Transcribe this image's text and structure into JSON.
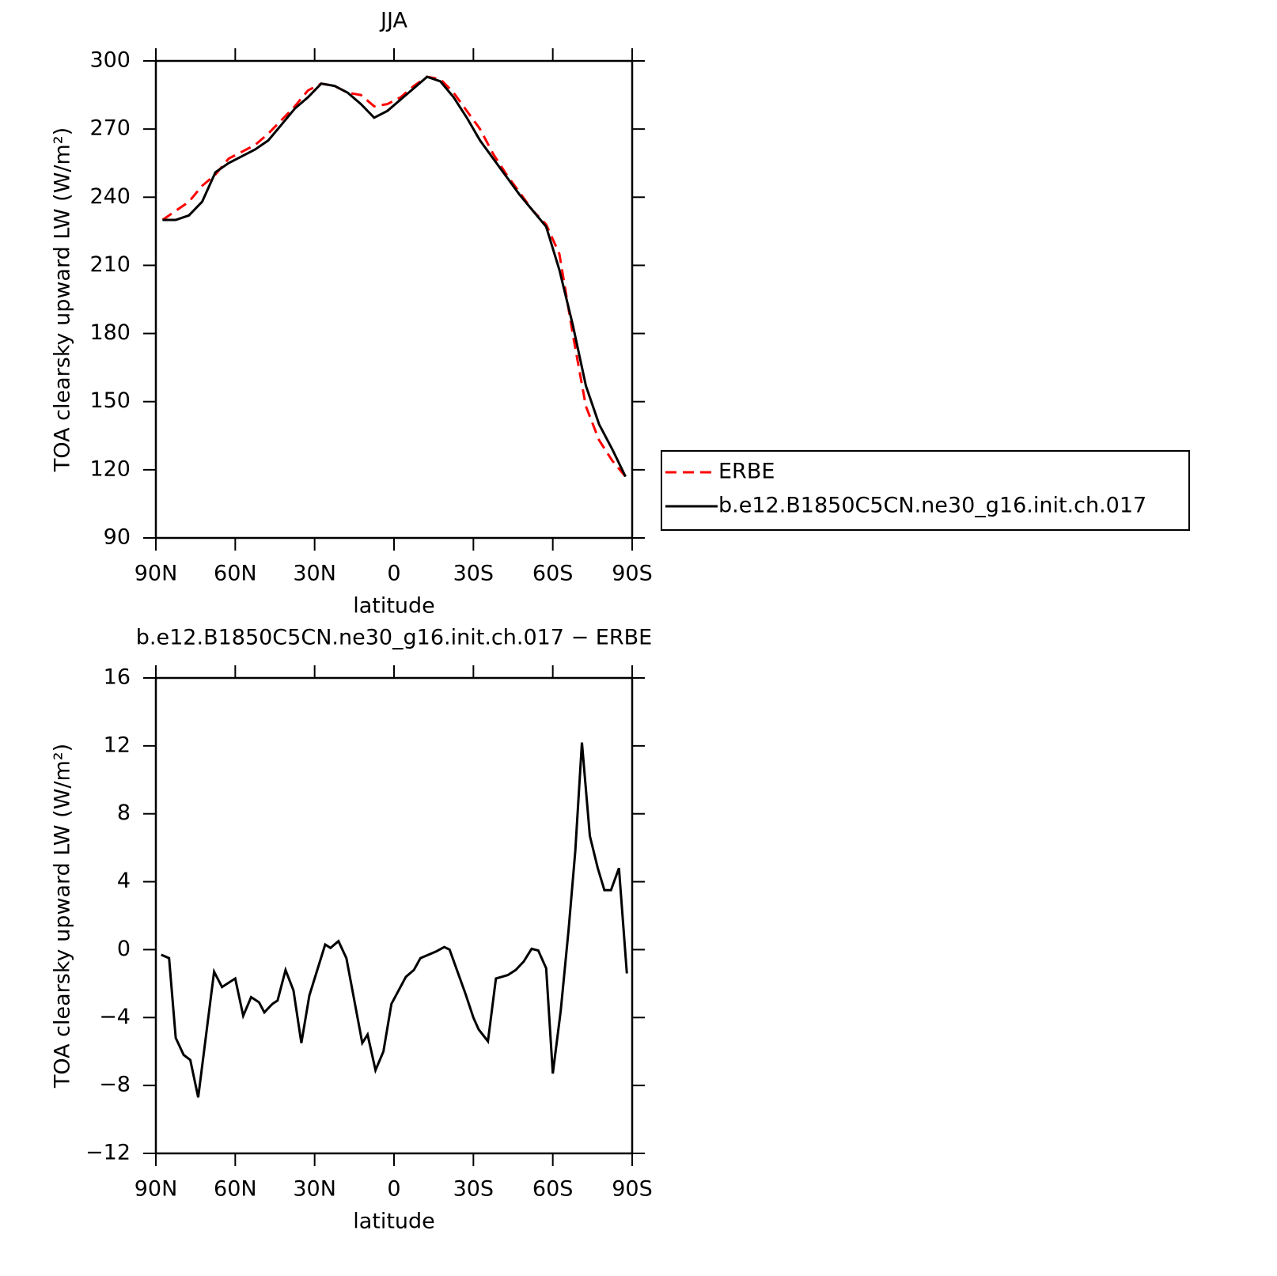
{
  "chart_data": [
    {
      "type": "line",
      "title": "JJA",
      "xlabel": "latitude",
      "ylabel": "TOA clearsky upward LW (W/m²)",
      "x": [
        87.5,
        82.5,
        77.5,
        72.5,
        67.5,
        62.5,
        57.5,
        52.5,
        47.5,
        42.5,
        37.5,
        32.5,
        27.5,
        22.5,
        17.5,
        12.5,
        7.5,
        2.5,
        -2.5,
        -7.5,
        -12.5,
        -17.5,
        -22.5,
        -27.5,
        -32.5,
        -37.5,
        -42.5,
        -47.5,
        -52.5,
        -57.5,
        -62.5,
        -67.5,
        -72.5,
        -77.5,
        -82.5,
        -87.5
      ],
      "series": [
        {
          "name": "ERBE",
          "color": "#ff0000",
          "line_style": "dashed",
          "values": [
            230,
            234,
            238,
            245,
            250,
            257,
            260,
            263,
            268,
            274,
            280,
            287,
            290,
            289,
            286,
            285,
            280,
            281,
            284,
            289,
            293,
            292,
            286,
            278,
            270,
            259,
            250,
            242,
            234,
            228,
            215,
            180,
            148,
            133,
            124,
            117
          ]
        },
        {
          "name": "b.e12.B1850C5CN.ne30_g16.init.ch.017",
          "color": "#000000",
          "line_style": "solid",
          "values": [
            230,
            230,
            232,
            238,
            251,
            255,
            258,
            261,
            265,
            272,
            279,
            284,
            290,
            289,
            286,
            281,
            275,
            278,
            283,
            288,
            293,
            291,
            284,
            275,
            265,
            257,
            249,
            241,
            234,
            227,
            208,
            184,
            157,
            140,
            129,
            117
          ]
        }
      ],
      "xlim": [
        90,
        -90
      ],
      "xticks": [
        {
          "value": 90,
          "label": "90N"
        },
        {
          "value": 60,
          "label": "60N"
        },
        {
          "value": 30,
          "label": "30N"
        },
        0,
        {
          "value": -30,
          "label": "30S"
        },
        {
          "value": -60,
          "label": "60S"
        },
        {
          "value": -90,
          "label": "90S"
        }
      ],
      "ylim": [
        90,
        300
      ],
      "yticks": [
        90,
        120,
        150,
        180,
        210,
        240,
        270,
        300
      ],
      "grid": false,
      "legend": "right"
    },
    {
      "type": "line",
      "title": "b.e12.B1850C5CN.ne30_g16.init.ch.017 − ERBE",
      "xlabel": "latitude",
      "ylabel": "TOA clearsky upward LW (W/m²)",
      "x": [
        88,
        85,
        82.5,
        79.5,
        77,
        74,
        68,
        65,
        60,
        57,
        54,
        51,
        49,
        46,
        44,
        41,
        38,
        35,
        32,
        26,
        24,
        21,
        18,
        12,
        10,
        7,
        4,
        1,
        -4.5,
        -7.5,
        -10,
        -16,
        -19,
        -21,
        -27,
        -30,
        -32,
        -35.5,
        -38.5,
        -43,
        -46,
        -49,
        -52,
        -54.5,
        -57.5,
        -60,
        -63,
        -66,
        -68.5,
        -71,
        -74,
        -77,
        -79.5,
        -82,
        -85,
        -88
      ],
      "values": [
        -0.3,
        -0.5,
        -5.2,
        -6.2,
        -6.5,
        -8.7,
        -1.3,
        -2.2,
        -1.7,
        -3.9,
        -2.8,
        -3.1,
        -3.7,
        -3.2,
        -3.0,
        -1.2,
        -2.4,
        -5.5,
        -2.7,
        0.3,
        0.1,
        0.5,
        -0.5,
        -5.5,
        -5.0,
        -7.1,
        -6.0,
        -3.2,
        -1.6,
        -1.2,
        -0.5,
        -0.1,
        0.15,
        0.0,
        -2.6,
        -4.0,
        -4.7,
        -5.4,
        -1.7,
        -1.5,
        -1.2,
        -0.7,
        0.05,
        -0.05,
        -1.1,
        -7.3,
        -3.6,
        1.2,
        5.8,
        12.2,
        6.7,
        4.8,
        3.5,
        3.5,
        4.8,
        -1.4
      ],
      "color": "#000000",
      "xlim": [
        90,
        -90
      ],
      "xticks": [
        {
          "value": 90,
          "label": "90N"
        },
        {
          "value": 60,
          "label": "60N"
        },
        {
          "value": 30,
          "label": "30N"
        },
        0,
        {
          "value": -30,
          "label": "30S"
        },
        {
          "value": -60,
          "label": "60S"
        },
        {
          "value": -90,
          "label": "90S"
        }
      ],
      "ylim": [
        -12,
        16
      ],
      "yticks": [
        {
          "value": -12,
          "label": "−12"
        },
        {
          "value": -8,
          "label": "−8"
        },
        {
          "value": -4,
          "label": "−4"
        },
        0,
        4,
        8,
        12,
        16
      ],
      "grid": false
    }
  ]
}
